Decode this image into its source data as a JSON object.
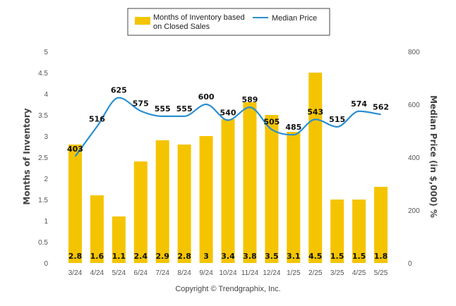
{
  "chart_data": {
    "type": "bar",
    "categories": [
      "3/24",
      "4/24",
      "5/24",
      "6/24",
      "7/24",
      "8/24",
      "9/24",
      "10/24",
      "11/24",
      "12/24",
      "1/25",
      "2/25",
      "3/25",
      "4/25",
      "5/25"
    ],
    "series": [
      {
        "name": "Months of Inventory based on Closed Sales",
        "type": "bar",
        "axis": "left",
        "values": [
          2.8,
          1.6,
          1.1,
          2.4,
          2.9,
          2.8,
          3,
          3.4,
          3.8,
          3.5,
          3.1,
          4.5,
          1.5,
          1.5,
          1.8
        ],
        "labels": [
          "2.8",
          "1.6",
          "1.1",
          "2.4",
          "2.9",
          "2.8",
          "3",
          "3.4",
          "3.8",
          "3.5",
          "3.1",
          "4.5",
          "1.5",
          "1.5",
          "1.8"
        ],
        "color": "#f5c400"
      },
      {
        "name": "Median Price",
        "type": "line",
        "axis": "right",
        "values": [
          403,
          516,
          625,
          575,
          555,
          555,
          600,
          540,
          589,
          505,
          485,
          543,
          515,
          574,
          562
        ],
        "labels": [
          "403",
          "516",
          "625",
          "575",
          "555",
          "555",
          "600",
          "540",
          "589",
          "505",
          "485",
          "543",
          "515",
          "574",
          "562"
        ],
        "color": "#2a8fd0"
      }
    ],
    "left_axis": {
      "title": "Months of Inventory",
      "range": [
        0,
        5
      ],
      "ticks": [
        "0",
        "0.5",
        "1",
        "1.5",
        "2",
        "2.5",
        "3",
        "3.5",
        "4",
        "4.5",
        "5"
      ]
    },
    "right_axis": {
      "title": "Median Price (in $,000) %",
      "range": [
        0,
        800
      ],
      "ticks": [
        "0",
        "200",
        "400",
        "600",
        "800"
      ]
    },
    "legend": {
      "position": "top-center",
      "bar_label_line1": "Months of Inventory based",
      "bar_label_line2": "on Closed Sales",
      "line_label": "Median Price"
    },
    "grid": false,
    "footer": "Copyright © Trendgraphix, Inc."
  }
}
